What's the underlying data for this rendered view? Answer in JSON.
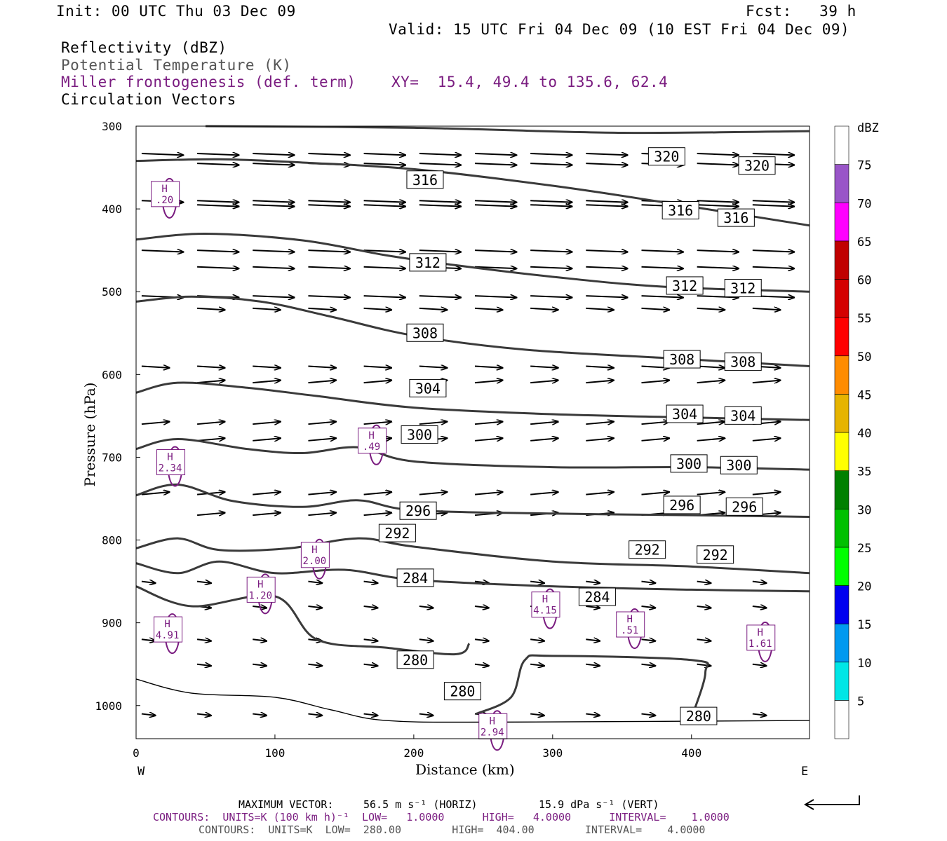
{
  "header": {
    "init": "Init: 00 UTC Thu 03 Dec 09",
    "fcst": "Fcst:   39 h",
    "valid": "Valid: 15 UTC Fri 04 Dec 09 (10 EST Fri 04 Dec 09)",
    "field1": "Reflectivity (dBZ)",
    "field2": "Potential Temperature (K)",
    "field3": "Miller frontogenesis (def. term)",
    "xy": "XY=  15.4, 49.4 to 135.6, 62.4",
    "field4": "Circulation Vectors"
  },
  "footer": {
    "max_vector_label": "MAXIMUM VECTOR:",
    "max_vector_horiz": "56.5 m s⁻¹ (HORIZ)",
    "max_vector_vert": "15.9 dPa s⁻¹ (VERT)",
    "contours1": "CONTOURS:  UNITS=K (100 km h)⁻¹  LOW=   1.0000      HIGH=   4.0000      INTERVAL=    1.0000",
    "contours2": "CONTOURS:  UNITS=K  LOW=  280.00        HIGH=  404.00        INTERVAL=    4.0000"
  },
  "colors": {
    "theta": "#3a3a3a",
    "frontogenesis": "#7a1c80",
    "vectors": "#000000"
  },
  "chart_data": {
    "type": "cross-section",
    "xlabel": "Distance (km)",
    "ylabel": "Pressure (hPa)",
    "xlim": [
      0,
      485
    ],
    "ylim": [
      1040,
      300
    ],
    "x_ticks": [
      0,
      100,
      200,
      300,
      400
    ],
    "y_ticks": [
      300,
      400,
      500,
      600,
      700,
      800,
      900,
      1000
    ],
    "x_end_labels": {
      "left": "W",
      "right": "E"
    },
    "theta_contours": [
      {
        "label": "320",
        "points": [
          [
            50,
            300
          ],
          [
            200,
            302
          ],
          [
            350,
            308
          ],
          [
            485,
            306
          ]
        ],
        "labels_at": [
          [
            370,
            337
          ],
          [
            435,
            348
          ]
        ]
      },
      {
        "label": "316",
        "points": [
          [
            0,
            342
          ],
          [
            60,
            340
          ],
          [
            120,
            344
          ],
          [
            200,
            352
          ],
          [
            300,
            372
          ],
          [
            380,
            392
          ],
          [
            485,
            420
          ]
        ],
        "labels_at": [
          [
            196,
            365
          ],
          [
            380,
            402
          ],
          [
            420,
            411
          ]
        ]
      },
      {
        "label": "312",
        "points": [
          [
            0,
            437
          ],
          [
            50,
            430
          ],
          [
            120,
            438
          ],
          [
            180,
            456
          ],
          [
            230,
            468
          ],
          [
            300,
            482
          ],
          [
            380,
            494
          ],
          [
            485,
            500
          ]
        ],
        "labels_at": [
          [
            198,
            465
          ],
          [
            383,
            493
          ],
          [
            425,
            496
          ]
        ]
      },
      {
        "label": "308",
        "points": [
          [
            0,
            512
          ],
          [
            40,
            506
          ],
          [
            90,
            512
          ],
          [
            140,
            530
          ],
          [
            200,
            553
          ],
          [
            280,
            570
          ],
          [
            380,
            580
          ],
          [
            485,
            590
          ]
        ],
        "labels_at": [
          [
            196,
            550
          ],
          [
            381,
            582
          ],
          [
            425,
            585
          ]
        ]
      },
      {
        "label": "304",
        "points": [
          [
            0,
            622
          ],
          [
            30,
            610
          ],
          [
            80,
            616
          ],
          [
            130,
            626
          ],
          [
            200,
            640
          ],
          [
            300,
            648
          ],
          [
            400,
            652
          ],
          [
            485,
            655
          ]
        ],
        "labels_at": [
          [
            198,
            617
          ],
          [
            383,
            648
          ],
          [
            425,
            650
          ]
        ]
      },
      {
        "label": "300",
        "points": [
          [
            0,
            690
          ],
          [
            30,
            678
          ],
          [
            80,
            690
          ],
          [
            120,
            695
          ],
          [
            160,
            688
          ],
          [
            200,
            705
          ],
          [
            300,
            712
          ],
          [
            400,
            712
          ],
          [
            485,
            715
          ]
        ],
        "labels_at": [
          [
            192,
            673
          ],
          [
            386,
            708
          ],
          [
            422,
            710
          ]
        ]
      },
      {
        "label": "296",
        "points": [
          [
            0,
            746
          ],
          [
            30,
            733
          ],
          [
            70,
            753
          ],
          [
            120,
            760
          ],
          [
            160,
            752
          ],
          [
            200,
            764
          ],
          [
            300,
            768
          ],
          [
            400,
            770
          ],
          [
            485,
            772
          ]
        ],
        "labels_at": [
          [
            191,
            765
          ],
          [
            381,
            758
          ],
          [
            426,
            760
          ]
        ]
      },
      {
        "label": "292",
        "points": [
          [
            0,
            810
          ],
          [
            30,
            798
          ],
          [
            60,
            812
          ],
          [
            110,
            810
          ],
          [
            160,
            798
          ],
          [
            200,
            808
          ],
          [
            300,
            826
          ],
          [
            400,
            832
          ],
          [
            485,
            840
          ]
        ],
        "labels_at": [
          [
            176,
            792
          ],
          [
            356,
            812
          ],
          [
            405,
            818
          ]
        ]
      },
      {
        "label": "284",
        "points": [
          [
            0,
            828
          ],
          [
            30,
            840
          ],
          [
            60,
            826
          ],
          [
            100,
            840
          ],
          [
            150,
            836
          ],
          [
            200,
            848
          ],
          [
            300,
            856
          ],
          [
            400,
            860
          ],
          [
            485,
            862
          ]
        ],
        "labels_at": [
          [
            189,
            846
          ],
          [
            320,
            869
          ]
        ]
      },
      {
        "label": "280",
        "points": [
          [
            0,
            856
          ],
          [
            40,
            880
          ],
          [
            100,
            868
          ],
          [
            130,
            920
          ],
          [
            180,
            930
          ],
          [
            230,
            938
          ],
          [
            240,
            925
          ]
        ],
        "labels_at": [
          [
            189,
            945
          ],
          [
            223,
            983
          ],
          [
            393,
            1013
          ]
        ]
      },
      {
        "label": "280",
        "points": [
          [
            245,
            1010
          ],
          [
            270,
            990
          ],
          [
            280,
            945
          ],
          [
            300,
            940
          ],
          [
            400,
            945
          ],
          [
            410,
            960
          ],
          [
            400,
            1015
          ]
        ],
        "labels_at": []
      }
    ],
    "vectors_note": "circulation vectors, horizontal component dominant (eastward)",
    "frontogenesis_maxima": [
      {
        "label": "H",
        "value": ".20",
        "x": 19,
        "p": 382
      },
      {
        "label": "H",
        "value": "2.34",
        "x": 23,
        "p": 706
      },
      {
        "label": "H",
        "value": ".49",
        "x": 168,
        "p": 680
      },
      {
        "label": "H",
        "value": "2.00",
        "x": 127,
        "p": 818
      },
      {
        "label": "H",
        "value": "1.20",
        "x": 88,
        "p": 860
      },
      {
        "label": "H",
        "value": "4.15",
        "x": 293,
        "p": 878
      },
      {
        "label": "H",
        "value": ".51",
        "x": 354,
        "p": 902
      },
      {
        "label": "H",
        "value": "4.91",
        "x": 21,
        "p": 908
      },
      {
        "label": "H",
        "value": "1.61",
        "x": 448,
        "p": 918
      },
      {
        "label": "H",
        "value": "2.94",
        "x": 255,
        "p": 1025
      }
    ],
    "colorbar": {
      "title": "dBZ",
      "levels": [
        "5",
        "10",
        "15",
        "20",
        "25",
        "30",
        "35",
        "40",
        "45",
        "50",
        "55",
        "60",
        "65",
        "70",
        "75"
      ],
      "colors": [
        "#ffffff",
        "#00e6e6",
        "#0099f0",
        "#0000f0",
        "#00ff00",
        "#00c000",
        "#008000",
        "#ffff00",
        "#e6b400",
        "#ff8c00",
        "#ff0000",
        "#d40000",
        "#c00000",
        "#ff00ff",
        "#9955c8",
        "#ffffff"
      ]
    }
  }
}
